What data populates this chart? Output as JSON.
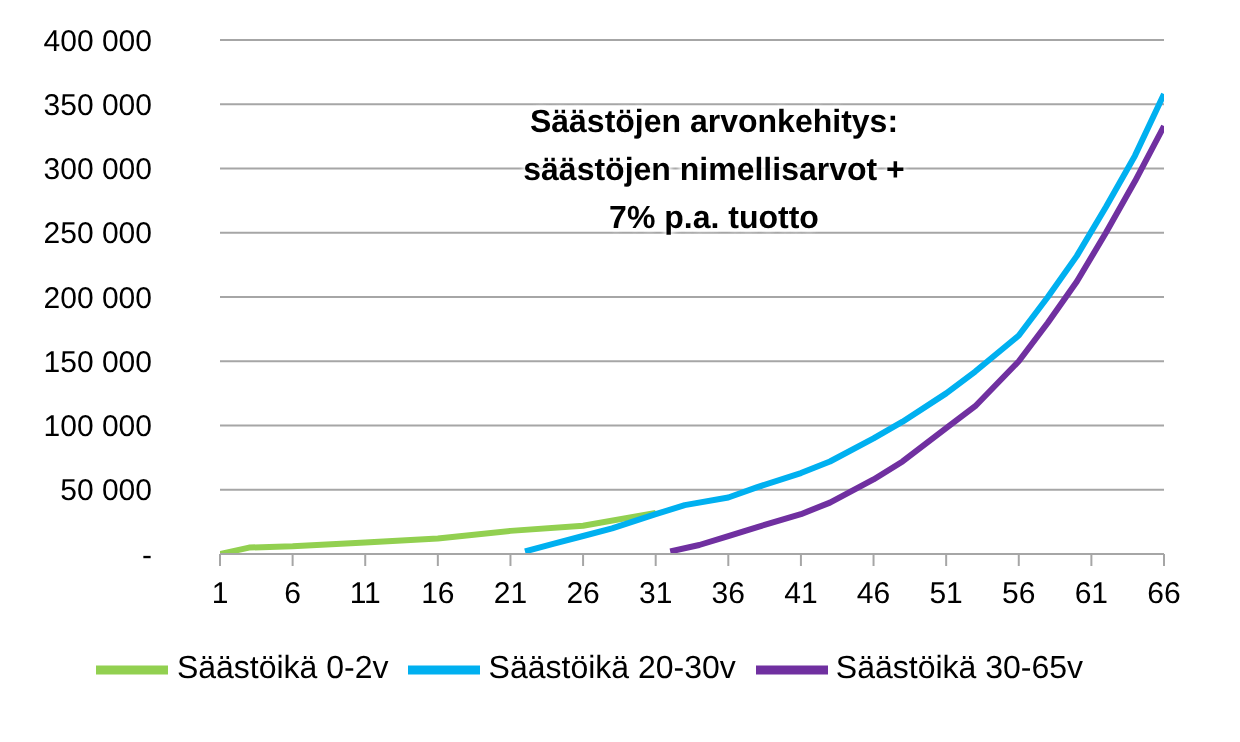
{
  "chart_data": {
    "type": "line",
    "title": "Säästöjen arvonkehitys:\nsäästöjen nimellisarvot +\n7% p.a. tuotto",
    "xlim": [
      1,
      66
    ],
    "xticks": [
      1,
      6,
      11,
      16,
      21,
      26,
      31,
      36,
      41,
      46,
      51,
      56,
      61,
      66
    ],
    "ylim": [
      0,
      400000
    ],
    "yticks": [
      {
        "value": 0,
        "label": "-"
      },
      {
        "value": 50000,
        "label": "50 000"
      },
      {
        "value": 100000,
        "label": "100 000"
      },
      {
        "value": 150000,
        "label": "150 000"
      },
      {
        "value": 200000,
        "label": "200 000"
      },
      {
        "value": 250000,
        "label": "250 000"
      },
      {
        "value": 300000,
        "label": "300 000"
      },
      {
        "value": 350000,
        "label": "350 000"
      },
      {
        "value": 400000,
        "label": "400 000"
      }
    ],
    "grid": "y",
    "legend": "bottom",
    "marker": "none",
    "line_style": "solid",
    "series": [
      {
        "name": "Säästöikä 0-2v",
        "color": "#92d050",
        "x": [
          1,
          3,
          6,
          11,
          16,
          21,
          26,
          31
        ],
        "values": [
          0,
          5000,
          6000,
          9000,
          12000,
          18000,
          22000,
          32000
        ]
      },
      {
        "name": "Säästöikä 20-30v",
        "color": "#00b0f0",
        "x": [
          22,
          24,
          26,
          28,
          31,
          33,
          36,
          38,
          41,
          43,
          46,
          48,
          51,
          53,
          56,
          58,
          60,
          62,
          64,
          66
        ],
        "values": [
          2000,
          8000,
          14000,
          20000,
          31000,
          38000,
          44000,
          52000,
          63000,
          72000,
          90000,
          103000,
          125000,
          142000,
          170000,
          200000,
          232000,
          270000,
          310000,
          358000
        ]
      },
      {
        "name": "Säästöikä 30-65v",
        "color": "#7030a0",
        "x": [
          32,
          34,
          36,
          38,
          41,
          43,
          46,
          48,
          51,
          53,
          56,
          58,
          60,
          62,
          64,
          66
        ],
        "values": [
          2000,
          7000,
          14000,
          21000,
          31000,
          40000,
          58000,
          72000,
          98000,
          115000,
          150000,
          180000,
          212000,
          250000,
          290000,
          333000
        ]
      }
    ]
  }
}
